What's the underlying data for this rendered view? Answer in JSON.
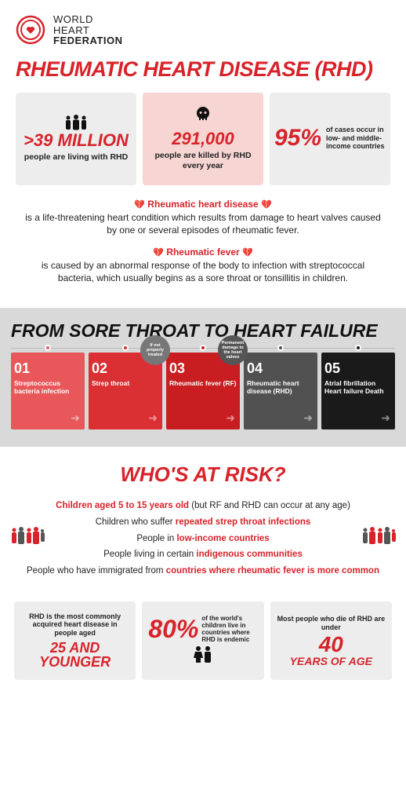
{
  "colors": {
    "primary_red": "#d8232a",
    "card_grey": "#ededed",
    "card_pink": "#f6d5d2",
    "prog_bg": "#d9d9d9",
    "text": "#222222"
  },
  "logo": {
    "line1": "WORLD",
    "line2": "HEART",
    "line3": "FEDERATION"
  },
  "title": "RHEUMATIC HEART DISEASE (RHD)",
  "stats": [
    {
      "big": ">39 MILLION",
      "sub": "people are living with RHD",
      "color": "red"
    },
    {
      "big": "291,000",
      "sub": "people are killed by RHD every year",
      "color": "red",
      "highlight": true,
      "icon": "skull"
    },
    {
      "big": "95%",
      "sub": "of cases occur in low- and middle-income countries",
      "color": "red",
      "layout": "side"
    }
  ],
  "def1": {
    "title": "Rheumatic heart disease",
    "body": "is a life-threatening heart condition which results from damage to heart valves caused by one or several episodes of rheumatic fever."
  },
  "def2": {
    "title": "Rheumatic fever",
    "body": "is caused by an abnormal response of the body to infection with streptococcal bacteria, which usually begins as a sore throat or tonsillitis in children."
  },
  "progression": {
    "title": "FROM SORE THROAT TO HEART FAILURE",
    "steps": [
      {
        "num": "01",
        "label": "Streptococcus bacteria infection",
        "bg": "#e8585a",
        "dot": "#e8585a"
      },
      {
        "num": "02",
        "label": "Strep throat",
        "bg": "#da2f33",
        "dot": "#da2f33",
        "bubble": "If not properly treated",
        "bubble_bg": "#777777"
      },
      {
        "num": "03",
        "label": "Rheumatic fever (RF)",
        "bg": "#c81e22",
        "dot": "#c81e22",
        "bubble": "Permanent damage to the heart valves",
        "bubble_bg": "#555555"
      },
      {
        "num": "04",
        "label": "Rheumatic heart disease (RHD)",
        "bg": "#515151",
        "dot": "#515151"
      },
      {
        "num": "05",
        "label": "Atrial fibrillation Heart failure Death",
        "bg": "#1a1a1a",
        "dot": "#1a1a1a"
      }
    ]
  },
  "risk": {
    "title": "WHO'S AT RISK?",
    "items": [
      {
        "pre": "",
        "hl": "Children aged 5 to 15 years old",
        "post": " (but RF and RHD can occur at any age)"
      },
      {
        "pre": "Children who suffer ",
        "hl": "repeated strep throat infections",
        "post": ""
      },
      {
        "pre": "People in ",
        "hl": "low-income countries",
        "post": ""
      },
      {
        "pre": "People living in certain ",
        "hl": "indigenous communities",
        "post": ""
      },
      {
        "pre": "People who have immigrated from ",
        "hl": "countries where rheumatic fever is more common",
        "post": ""
      }
    ]
  },
  "bottom": [
    {
      "top": "RHD is the most commonly acquired heart disease in people aged",
      "big": "25 AND YOUNGER",
      "big_size": 18
    },
    {
      "big": "80%",
      "side": "of the world's children live in countries where RHD is endemic",
      "layout": "80"
    },
    {
      "top": "Most people who die of RHD are under",
      "big": "40",
      "big2": "YEARS OF AGE",
      "big_size": 28
    }
  ]
}
